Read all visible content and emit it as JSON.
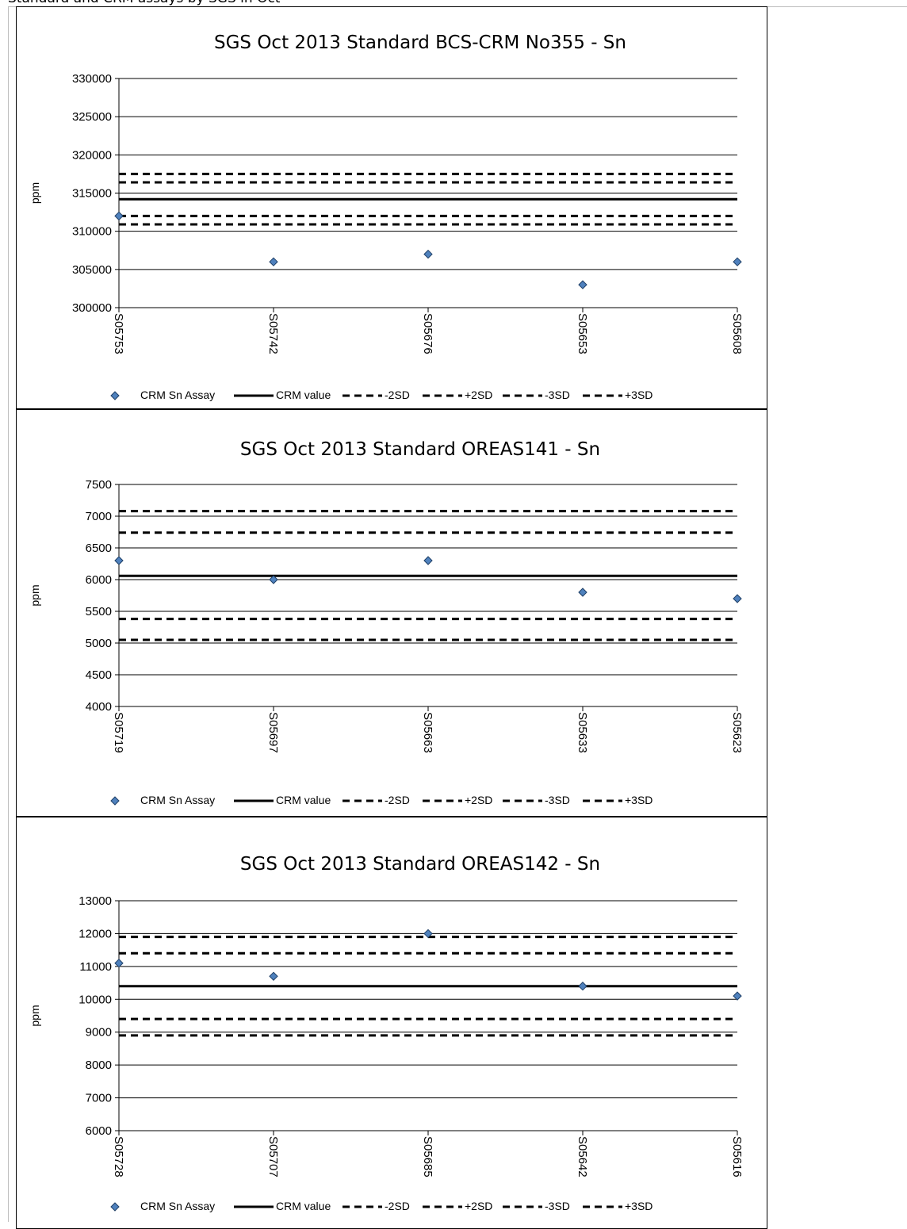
{
  "page": {
    "caption": "Standard and CRM assays by SGS in Oct",
    "colors": {
      "marker": "#4F81BD",
      "marker_stroke": "#1F3F66",
      "line": "#000000",
      "grid": "#000000"
    }
  },
  "chart_data": [
    {
      "type": "scatter",
      "title": "SGS Oct 2013 Standard BCS-CRM No355 - Sn",
      "ylabel": "ppm",
      "ylim": [
        300000,
        330000
      ],
      "ystep": 5000,
      "yticks": [
        "300000",
        "305000",
        "310000",
        "315000",
        "320000",
        "325000",
        "330000"
      ],
      "categories": [
        "S05753",
        "S05742",
        "S05676",
        "S05653",
        "S05608"
      ],
      "grid": true,
      "legend_position": "bottom",
      "series": [
        {
          "name": "CRM Sn Assay",
          "kind": "marker",
          "values": [
            312000,
            306000,
            307000,
            303000,
            306000
          ]
        },
        {
          "name": "CRM value",
          "kind": "solid",
          "values": [
            314200,
            314200,
            314200,
            314200,
            314200
          ]
        },
        {
          "name": "-2SD",
          "kind": "dashed",
          "values": [
            312000,
            312000,
            312000,
            312000,
            312000
          ]
        },
        {
          "name": "+2SD",
          "kind": "dashed",
          "values": [
            316400,
            316400,
            316400,
            316400,
            316400
          ]
        },
        {
          "name": "-3SD",
          "kind": "dashed",
          "values": [
            310900,
            310900,
            310900,
            310900,
            310900
          ]
        },
        {
          "name": "+3SD",
          "kind": "dashed",
          "values": [
            317500,
            317500,
            317500,
            317500,
            317500
          ]
        }
      ]
    },
    {
      "type": "scatter",
      "title": "SGS Oct 2013 Standard OREAS141 - Sn",
      "ylabel": "ppm",
      "ylim": [
        4000,
        7500
      ],
      "ystep": 500,
      "yticks": [
        "4000",
        "4500",
        "5000",
        "5500",
        "6000",
        "6500",
        "7000",
        "7500"
      ],
      "categories": [
        "S05719",
        "S05697",
        "S05663",
        "S05633",
        "S05623"
      ],
      "grid": true,
      "legend_position": "bottom",
      "series": [
        {
          "name": "CRM Sn Assay",
          "kind": "marker",
          "values": [
            6300,
            6000,
            6300,
            5800,
            5700
          ]
        },
        {
          "name": "CRM value",
          "kind": "solid",
          "values": [
            6060,
            6060,
            6060,
            6060,
            6060
          ]
        },
        {
          "name": "-2SD",
          "kind": "dashed",
          "values": [
            5380,
            5380,
            5380,
            5380,
            5380
          ]
        },
        {
          "name": "+2SD",
          "kind": "dashed",
          "values": [
            6740,
            6740,
            6740,
            6740,
            6740
          ]
        },
        {
          "name": "-3SD",
          "kind": "dashed",
          "values": [
            5050,
            5050,
            5050,
            5050,
            5050
          ]
        },
        {
          "name": "+3SD",
          "kind": "dashed",
          "values": [
            7080,
            7080,
            7080,
            7080,
            7080
          ]
        }
      ]
    },
    {
      "type": "scatter",
      "title": "SGS Oct 2013 Standard OREAS142 - Sn",
      "ylabel": "ppm",
      "ylim": [
        6000,
        13000
      ],
      "ystep": 1000,
      "yticks": [
        "6000",
        "7000",
        "8000",
        "9000",
        "10000",
        "11000",
        "12000",
        "13000"
      ],
      "categories": [
        "S05728",
        "S05707",
        "S05685",
        "S05642",
        "S05616"
      ],
      "grid": true,
      "legend_position": "bottom",
      "series": [
        {
          "name": "CRM Sn Assay",
          "kind": "marker",
          "values": [
            11100,
            10700,
            12000,
            10400,
            10100
          ]
        },
        {
          "name": "CRM value",
          "kind": "solid",
          "values": [
            10400,
            10400,
            10400,
            10400,
            10400
          ]
        },
        {
          "name": "-2SD",
          "kind": "dashed",
          "values": [
            9400,
            9400,
            9400,
            9400,
            9400
          ]
        },
        {
          "name": "+2SD",
          "kind": "dashed",
          "values": [
            11400,
            11400,
            11400,
            11400,
            11400
          ]
        },
        {
          "name": "-3SD",
          "kind": "dashed",
          "values": [
            8900,
            8900,
            8900,
            8900,
            8900
          ]
        },
        {
          "name": "+3SD",
          "kind": "dashed",
          "values": [
            11900,
            11900,
            11900,
            11900,
            11900
          ]
        }
      ]
    }
  ]
}
